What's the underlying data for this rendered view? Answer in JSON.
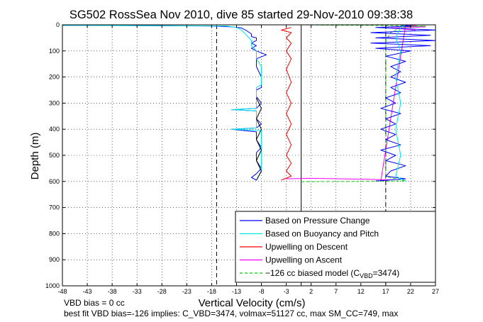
{
  "chart_data": {
    "type": "line",
    "title": "SG502 RossSea Nov 2010, dive 85 started 29-Nov-2010 09:38:38",
    "xlabel": "Vertical Velocity (cm/s)",
    "ylabel": "Depth (m)",
    "xlim": [
      -48,
      27
    ],
    "ylim": [
      1000,
      0
    ],
    "y_reversed": true,
    "grid": true,
    "legend_position": "bottom-right",
    "x_ticks": [
      -48,
      -43,
      -38,
      -33,
      -28,
      -23,
      -18,
      -13,
      -8,
      -3,
      2,
      7,
      12,
      17,
      22,
      27
    ],
    "x_tick_labels": [
      "-48",
      "-43",
      "-38",
      "-33",
      "-28",
      "-23",
      "-18",
      "-13",
      "-8",
      "-3",
      "2",
      "7",
      "12",
      "17",
      "22",
      "27"
    ],
    "y_ticks": [
      0,
      100,
      200,
      300,
      400,
      500,
      600,
      700,
      800,
      900,
      1000
    ],
    "y_tick_labels": [
      "0",
      "100",
      "200",
      "300",
      "400",
      "500",
      "600",
      "700",
      "800",
      "900",
      "1000"
    ],
    "reference_lines": [
      {
        "x": -17,
        "color": "#000000",
        "style": "dashed"
      },
      {
        "x": 0,
        "color": "#000000",
        "style": "solid"
      },
      {
        "x": 17,
        "color": "#000000",
        "style": "dashed"
      }
    ],
    "series": [
      {
        "name": "Based on Pressure Change",
        "color": "#0000ff",
        "points": [
          [
            -48,
            2
          ],
          [
            -35,
            3
          ],
          [
            -25,
            4
          ],
          [
            -18,
            5
          ],
          [
            -14,
            8
          ],
          [
            -12,
            12
          ],
          [
            -11,
            22
          ],
          [
            -10,
            35
          ],
          [
            -10,
            45
          ],
          [
            -9,
            50
          ],
          [
            -9,
            60
          ],
          [
            -10,
            70
          ],
          [
            -9,
            80
          ],
          [
            -10,
            90
          ],
          [
            -9,
            100
          ],
          [
            -7,
            115
          ],
          [
            -9,
            130
          ],
          [
            -9,
            160
          ],
          [
            -8,
            200
          ],
          [
            -8,
            240
          ],
          [
            -9,
            250
          ],
          [
            -9,
            275
          ],
          [
            -8,
            300
          ],
          [
            -9,
            320
          ],
          [
            -14,
            325
          ],
          [
            -9,
            330
          ],
          [
            -9,
            360
          ],
          [
            -8,
            380
          ],
          [
            -9,
            395
          ],
          [
            -14,
            400
          ],
          [
            -9,
            410
          ],
          [
            -9,
            440
          ],
          [
            -8,
            470
          ],
          [
            -9,
            490
          ],
          [
            -9,
            520
          ],
          [
            -8,
            550
          ],
          [
            -9,
            570
          ],
          [
            -10,
            585
          ],
          [
            -9,
            595
          ]
        ]
      },
      {
        "name": "Based on Buoyancy and Pitch",
        "color": "#00e5e5",
        "points": [
          [
            -48,
            2
          ],
          [
            -30,
            3
          ],
          [
            -20,
            4
          ],
          [
            -15,
            5
          ],
          [
            -13,
            10
          ],
          [
            -12,
            20
          ],
          [
            -11,
            40
          ],
          [
            -10,
            60
          ],
          [
            -10,
            80
          ],
          [
            -9,
            100
          ],
          [
            -9,
            130
          ],
          [
            -8,
            160
          ],
          [
            -8,
            230
          ],
          [
            -9,
            240
          ],
          [
            -9,
            320
          ],
          [
            -14,
            325
          ],
          [
            -9,
            330
          ],
          [
            -9,
            395
          ],
          [
            -14,
            400
          ],
          [
            -8,
            405
          ],
          [
            -8,
            500
          ],
          [
            -8,
            560
          ],
          [
            -9,
            595
          ]
        ]
      },
      {
        "name": "Upwelling on Descent",
        "color": "#ff0000",
        "points": [
          [
            -2,
            10
          ],
          [
            -4,
            20
          ],
          [
            -2,
            30
          ],
          [
            -3,
            50
          ],
          [
            -2,
            70
          ],
          [
            -3,
            100
          ],
          [
            -2,
            130
          ],
          [
            -3,
            170
          ],
          [
            -2,
            220
          ],
          [
            -3,
            260
          ],
          [
            -2,
            300
          ],
          [
            -3,
            340
          ],
          [
            -2,
            380
          ],
          [
            -3,
            420
          ],
          [
            -2,
            460
          ],
          [
            -3,
            500
          ],
          [
            -2,
            530
          ],
          [
            -3,
            560
          ],
          [
            -2,
            580
          ],
          [
            -4,
            595
          ]
        ]
      },
      {
        "name": "Upwelling on Ascent",
        "color": "#ff00ff",
        "points": [
          [
            -3,
            590
          ],
          [
            2,
            588
          ],
          [
            8,
            590
          ],
          [
            14,
            592
          ],
          [
            18,
            594
          ],
          [
            16,
            598
          ],
          [
            21,
            0
          ],
          [
            23,
            3
          ],
          [
            20,
            6
          ],
          [
            25,
            8
          ],
          [
            18,
            12
          ],
          [
            23,
            20
          ]
        ]
      },
      {
        "name": "−126 cc biased model (C",
        "subscript": "VBD",
        "name_suffix": "=3474)",
        "color": "#00cc00",
        "style": "dashed",
        "points": [
          [
            0,
            0
          ],
          [
            5,
            1
          ],
          [
            12,
            2
          ],
          [
            20,
            3
          ],
          [
            25,
            5
          ],
          [
            20,
            10
          ],
          [
            18,
            30
          ],
          [
            17,
            60
          ],
          [
            17,
            100
          ],
          [
            17,
            200
          ],
          [
            17,
            300
          ],
          [
            17,
            400
          ],
          [
            17,
            500
          ],
          [
            17,
            580
          ],
          [
            19,
            590
          ],
          [
            21,
            598
          ],
          [
            10,
            600
          ],
          [
            0,
            601
          ]
        ]
      },
      {
        "name": "Ascent pressure velocity",
        "show_in_legend": false,
        "color": "#0000ff",
        "points": [
          [
            15,
            598
          ],
          [
            21,
            590
          ],
          [
            17,
            580
          ],
          [
            18,
            560
          ],
          [
            21,
            540
          ],
          [
            17,
            520
          ],
          [
            19,
            500
          ],
          [
            16,
            480
          ],
          [
            20,
            460
          ],
          [
            17,
            440
          ],
          [
            19,
            420
          ],
          [
            16,
            400
          ],
          [
            19,
            380
          ],
          [
            17,
            360
          ],
          [
            20,
            340
          ],
          [
            16,
            320
          ],
          [
            19,
            300
          ],
          [
            17,
            280
          ],
          [
            20,
            260
          ],
          [
            18,
            240
          ],
          [
            21,
            220
          ],
          [
            18,
            200
          ],
          [
            20,
            180
          ],
          [
            18,
            160
          ],
          [
            21,
            140
          ],
          [
            17,
            120
          ],
          [
            22,
            100
          ],
          [
            15,
            90
          ],
          [
            26,
            80
          ],
          [
            14,
            70
          ],
          [
            27,
            60
          ],
          [
            15,
            50
          ],
          [
            26,
            40
          ],
          [
            14,
            30
          ],
          [
            27,
            20
          ],
          [
            15,
            10
          ],
          [
            22,
            5
          ],
          [
            20,
            0
          ]
        ]
      },
      {
        "name": "Ascent buoyancy velocity",
        "show_in_legend": false,
        "color": "#00e5e5",
        "points": [
          [
            21,
            598
          ],
          [
            19,
            580
          ],
          [
            20,
            500
          ],
          [
            19,
            400
          ],
          [
            20,
            300
          ],
          [
            19,
            200
          ],
          [
            20,
            100
          ],
          [
            19,
            50
          ],
          [
            20,
            10
          ],
          [
            21,
            0
          ]
        ]
      },
      {
        "name": "Model descent",
        "show_in_legend": false,
        "color": "#000000",
        "points": [
          [
            -9,
            596
          ],
          [
            -8,
            560
          ],
          [
            -9,
            520
          ],
          [
            -8,
            480
          ],
          [
            -9,
            440
          ],
          [
            -8,
            400
          ],
          [
            -9,
            360
          ],
          [
            -8,
            320
          ],
          [
            -9,
            280
          ]
        ]
      }
    ],
    "legend": [
      {
        "label": "Based on Pressure Change",
        "color": "#0000ff",
        "style": "solid"
      },
      {
        "label": "Based on Buoyancy and Pitch",
        "color": "#00e5e5",
        "style": "solid"
      },
      {
        "label": "Upwelling on Descent",
        "color": "#ff0000",
        "style": "solid"
      },
      {
        "label": "Upwelling on Ascent",
        "color": "#ff00ff",
        "style": "solid"
      },
      {
        "label": "−126 cc biased model (C",
        "sub": "VBD",
        "suffix": "=3474)",
        "color": "#00cc00",
        "style": "dashed"
      }
    ],
    "annotations": [
      "VBD bias = 0 cc",
      "best fit VBD bias=-126 implies: C_VBD=3474, volmax=51127 cc, max SM_CC=749, max"
    ]
  }
}
